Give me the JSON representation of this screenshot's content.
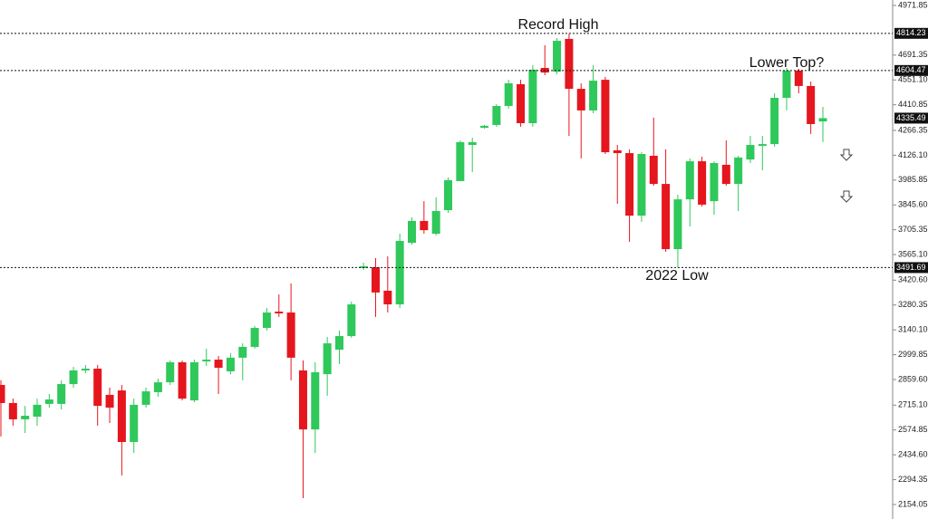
{
  "chart_data": {
    "type": "candlestick",
    "up_color": "#2fc85a",
    "down_color": "#e5161d",
    "ylim": [
      2072.2,
      5002.53
    ],
    "yticks": [
      4971.85,
      4691.35,
      {
        "value": 4551.1,
        "label": "4551.10"
      },
      4410.85,
      4266.35,
      {
        "value": 4126.1,
        "label": "4126.10"
      },
      3985.85,
      {
        "value": 3845.6,
        "label": "3845.60"
      },
      3705.35,
      {
        "value": 3565.1,
        "label": "3565.10"
      },
      {
        "value": 3420.6,
        "label": "3420.60"
      },
      3280.35,
      {
        "value": 3140.1,
        "label": "3140.10"
      },
      2999.85,
      {
        "value": 2859.6,
        "label": "2859.60"
      },
      {
        "value": 2715.1,
        "label": "2715.10"
      },
      2574.85,
      {
        "value": 2434.6,
        "label": "2434.60"
      },
      2294.35,
      2154.05
    ],
    "levels": [
      4814.23,
      4604.47,
      3491.69
    ],
    "last_price": 4335.49,
    "annotations": [
      "Record High",
      "Lower Top?",
      "2022 Low"
    ],
    "series": {
      "open": [
        2829,
        2727,
        2635,
        2650,
        2722,
        2722,
        2834,
        2911,
        2921,
        2773,
        2798,
        2507,
        2717,
        2788,
        2844,
        2957,
        2742,
        2962,
        2972,
        2906,
        2983,
        3044,
        3151,
        3243,
        3238,
        2911,
        2578,
        2890,
        3028,
        3105,
        3489,
        3494,
        3361,
        3284,
        3632,
        3755,
        3683,
        3816,
        3980,
        4184,
        4281,
        4297,
        4404,
        4527,
        4307,
        4619,
        4598,
        4783,
        4501,
        4379,
        4552,
        4154,
        4138,
        3785,
        4123,
        3964,
        3596,
        3877,
        4092,
        3867,
        4072,
        3964,
        4102,
        4179,
        4189,
        4450,
        4604,
        4517,
        4317
      ],
      "high": [
        2855,
        2752,
        2711,
        2752,
        2778,
        2855,
        2931,
        2942,
        2942,
        2814,
        2829,
        2752,
        2814,
        2865,
        2967,
        2967,
        2972,
        3034,
        2993,
        3008,
        3064,
        3162,
        3264,
        3340,
        3402,
        2967,
        2957,
        3100,
        3136,
        3300,
        3519,
        3545,
        3555,
        3683,
        3775,
        3867,
        3888,
        4000,
        4210,
        4225,
        4297,
        4414,
        4552,
        4552,
        4634,
        4747,
        4788,
        4812,
        4532,
        4634,
        4568,
        4184,
        4159,
        4143,
        4338,
        4159,
        3903,
        4108,
        4118,
        4092,
        4210,
        4123,
        4235,
        4235,
        4476,
        4619,
        4614,
        4542,
        4399
      ],
      "low": [
        2538,
        2599,
        2558,
        2599,
        2701,
        2691,
        2814,
        2895,
        2599,
        2614,
        2318,
        2445,
        2701,
        2762,
        2829,
        2742,
        2732,
        2936,
        2778,
        2890,
        2855,
        3034,
        3136,
        3213,
        2855,
        2190,
        2445,
        2768,
        2947,
        3095,
        3479,
        3213,
        3238,
        3264,
        3622,
        3683,
        3673,
        3801,
        3980,
        4031,
        4276,
        4287,
        4389,
        4287,
        4287,
        4578,
        4583,
        4235,
        4108,
        4363,
        4133,
        3852,
        3637,
        3750,
        3954,
        3581,
        3492,
        3724,
        3836,
        3790,
        3954,
        3811,
        4082,
        4041,
        4174,
        4379,
        4476,
        4246,
        4200
      ],
      "close": [
        2727,
        2635,
        2655,
        2717,
        2747,
        2834,
        2911,
        2921,
        2711,
        2701,
        2507,
        2717,
        2793,
        2844,
        2957,
        2752,
        2957,
        2972,
        2926,
        2983,
        3044,
        3151,
        3238,
        3233,
        2983,
        2578,
        2901,
        3064,
        3105,
        3284,
        3499,
        3351,
        3284,
        3642,
        3755,
        3703,
        3811,
        3985,
        4200,
        4200,
        4292,
        4404,
        4532,
        4307,
        4609,
        4593,
        4772,
        4501,
        4379,
        4547,
        4143,
        4138,
        3785,
        4133,
        3964,
        3596,
        3877,
        4092,
        3847,
        4082,
        3964,
        4113,
        4184,
        4189,
        4450,
        4604,
        4517,
        4302,
        4335.49
      ]
    }
  }
}
